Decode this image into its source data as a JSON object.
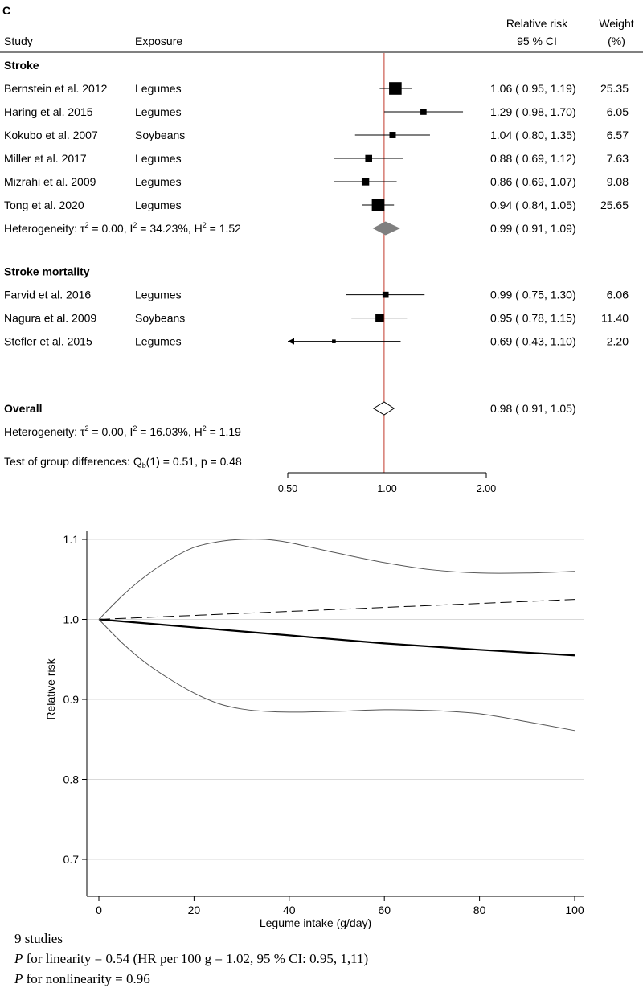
{
  "panel_label": "C",
  "chart_data": [
    {
      "type": "forest",
      "headers": {
        "study": "Study",
        "exposure": "Exposure",
        "rr_line1": "Relative risk",
        "rr_line2": "95 % CI",
        "weight_line1": "Weight",
        "weight_line2": "(%)"
      },
      "axis": {
        "scale": "log",
        "min": 0.5,
        "max": 2.0,
        "ref": 1.0,
        "ticks": [
          "0.50",
          "1.00",
          "2.00"
        ],
        "tick_values": [
          0.5,
          1.0,
          2.0
        ]
      },
      "groups": [
        {
          "name": "Stroke",
          "studies": [
            {
              "study": "Bernstein et al. 2012",
              "exposure": "Legumes",
              "rr": 1.06,
              "lo": 0.95,
              "hi": 1.19,
              "ci_text": "1.06 ( 0.95,  1.19)",
              "weight": "25.35"
            },
            {
              "study": "Haring et al. 2015",
              "exposure": "Legumes",
              "rr": 1.29,
              "lo": 0.98,
              "hi": 1.7,
              "ci_text": "1.29 ( 0.98,  1.70)",
              "weight": "6.05"
            },
            {
              "study": "Kokubo et al. 2007",
              "exposure": "Soybeans",
              "rr": 1.04,
              "lo": 0.8,
              "hi": 1.35,
              "ci_text": "1.04 ( 0.80,  1.35)",
              "weight": "6.57"
            },
            {
              "study": "Miller et al. 2017",
              "exposure": "Legumes",
              "rr": 0.88,
              "lo": 0.69,
              "hi": 1.12,
              "ci_text": "0.88 ( 0.69,  1.12)",
              "weight": "7.63"
            },
            {
              "study": "Mizrahi et al. 2009",
              "exposure": "Legumes",
              "rr": 0.86,
              "lo": 0.69,
              "hi": 1.07,
              "ci_text": "0.86 ( 0.69,  1.07)",
              "weight": "9.08"
            },
            {
              "study": "Tong et al. 2020",
              "exposure": "Legumes",
              "rr": 0.94,
              "lo": 0.84,
              "hi": 1.05,
              "ci_text": "0.94 ( 0.84,  1.05)",
              "weight": "25.65"
            }
          ],
          "pooled": {
            "rr": 0.99,
            "lo": 0.91,
            "hi": 1.09,
            "ci_text": "0.99 ( 0.91,  1.09)"
          },
          "heterogeneity": {
            "prefix": "Heterogeneity: τ",
            "tau2": "0.00",
            "i2": "34.23%",
            "h2": "1.52"
          }
        },
        {
          "name": "Stroke mortality",
          "studies": [
            {
              "study": "Farvid et al. 2016",
              "exposure": "Legumes",
              "rr": 0.99,
              "lo": 0.75,
              "hi": 1.3,
              "ci_text": "0.99 ( 0.75,  1.30)",
              "weight": "6.06"
            },
            {
              "study": "Nagura et al. 2009",
              "exposure": "Soybeans",
              "rr": 0.95,
              "lo": 0.78,
              "hi": 1.15,
              "ci_text": "0.95 ( 0.78,  1.15)",
              "weight": "11.40"
            },
            {
              "study": "Stefler et al. 2015",
              "exposure": "Legumes",
              "rr": 0.69,
              "lo": 0.43,
              "hi": 1.1,
              "ci_text": "0.69 ( 0.43,  1.10)",
              "weight": "2.20"
            }
          ]
        }
      ],
      "overall": {
        "label": "Overall",
        "rr": 0.98,
        "lo": 0.91,
        "hi": 1.05,
        "ci_text": "0.98 ( 0.91,  1.05)",
        "heterogeneity": {
          "tau2": "0.00",
          "i2": "16.03%",
          "h2": "1.19"
        },
        "group_test": {
          "label": "Test of group differences: Q",
          "sub": "b",
          "rest": "(1) = 0.51, p = 0.48"
        }
      }
    },
    {
      "type": "line",
      "title": "",
      "xlabel": "Legume intake (g/day)",
      "ylabel": "Relative risk",
      "xlim": [
        0,
        100
      ],
      "ylim": [
        0.69,
        1.11
      ],
      "xticks": [
        "0",
        "20",
        "40",
        "60",
        "80",
        "100"
      ],
      "xtick_values": [
        0,
        20,
        40,
        60,
        80,
        100
      ],
      "yticks": [
        "0.7",
        "0.8",
        "0.9",
        "1.0",
        "1.1"
      ],
      "ytick_values": [
        0.7,
        0.8,
        0.9,
        1.0,
        1.1
      ],
      "grid": true,
      "series": [
        {
          "name": "Nonlinear estimate",
          "style": "solid-bold",
          "x": [
            0,
            20,
            40,
            60,
            80,
            100
          ],
          "y": [
            1.0,
            0.99,
            0.98,
            0.97,
            0.962,
            0.955
          ]
        },
        {
          "name": "Linear estimate",
          "style": "dashed",
          "x": [
            0,
            20,
            40,
            60,
            80,
            100
          ],
          "y": [
            1.0,
            1.005,
            1.01,
            1.015,
            1.02,
            1.025
          ]
        },
        {
          "name": "Upper 95% CI",
          "style": "thin",
          "x": [
            0,
            5,
            10,
            15,
            20,
            25,
            30,
            35,
            40,
            50,
            60,
            70,
            80,
            90,
            100
          ],
          "y": [
            1.0,
            1.03,
            1.055,
            1.075,
            1.09,
            1.097,
            1.1,
            1.1,
            1.096,
            1.083,
            1.071,
            1.062,
            1.058,
            1.058,
            1.06
          ]
        },
        {
          "name": "Lower 95% CI",
          "style": "thin",
          "x": [
            0,
            5,
            10,
            15,
            20,
            25,
            30,
            35,
            40,
            50,
            60,
            70,
            80,
            90,
            100
          ],
          "y": [
            1.0,
            0.97,
            0.945,
            0.925,
            0.908,
            0.895,
            0.888,
            0.885,
            0.884,
            0.885,
            0.887,
            0.886,
            0.882,
            0.872,
            0.861
          ]
        }
      ]
    }
  ],
  "caption": {
    "line1": "9 studies",
    "p_letter": "P",
    "line2_rest": " for linearity = 0.54 (HR per 100 g = 1.02, 95 % CI: 0.95, 1,11)",
    "line3_rest": " for nonlinearity = 0.96"
  }
}
